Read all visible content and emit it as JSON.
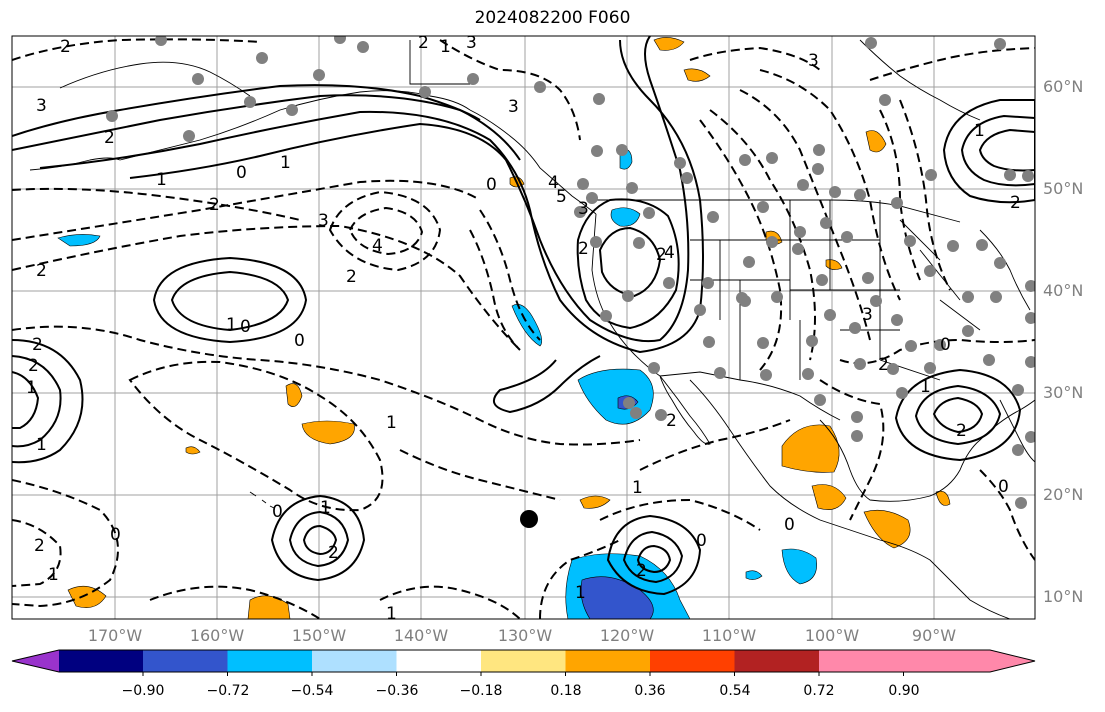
{
  "title": "2024082200 F060",
  "lat_labels": [
    "60°N",
    "50°N",
    "40°N",
    "30°N",
    "20°N",
    "10°N"
  ],
  "lon_labels": [
    "170°W",
    "160°W",
    "150°W",
    "140°W",
    "130°W",
    "120°W",
    "110°W",
    "100°W",
    "90°W"
  ],
  "colorbar": {
    "ticks": [
      "−0.90",
      "−0.72",
      "−0.54",
      "−0.36",
      "−0.18",
      "0.18",
      "0.36",
      "0.54",
      "0.72",
      "0.90"
    ],
    "colors": [
      "#9933cc",
      "#000080",
      "#3355cc",
      "#00bfff",
      "#aee0ff",
      "#ffffff",
      "#ffe680",
      "#ffa500",
      "#ff4000",
      "#b22222",
      "#ff88aa"
    ]
  },
  "contour_labels": [
    {
      "text": "2"
    },
    {
      "text": "3"
    },
    {
      "text": "2"
    },
    {
      "text": "1"
    },
    {
      "text": "0"
    },
    {
      "text": "1"
    },
    {
      "text": "2"
    },
    {
      "text": "3"
    },
    {
      "text": "4"
    },
    {
      "text": "2"
    },
    {
      "text": "1"
    },
    {
      "text": "0"
    },
    {
      "text": "0"
    },
    {
      "text": "2"
    },
    {
      "text": "2"
    },
    {
      "text": "1"
    },
    {
      "text": "1"
    },
    {
      "text": "2"
    },
    {
      "text": "1"
    },
    {
      "text": "0"
    },
    {
      "text": "2"
    },
    {
      "text": "1"
    },
    {
      "text": "0"
    },
    {
      "text": "2"
    },
    {
      "text": "1"
    },
    {
      "text": "1"
    },
    {
      "text": "3"
    },
    {
      "text": "4"
    },
    {
      "text": "5"
    },
    {
      "text": "2"
    },
    {
      "text": "0"
    },
    {
      "text": "1"
    },
    {
      "text": "2"
    },
    {
      "text": "3"
    },
    {
      "text": "2"
    },
    {
      "text": "3"
    },
    {
      "text": "2"
    },
    {
      "text": "0"
    },
    {
      "text": "1"
    },
    {
      "text": "1"
    },
    {
      "text": "2"
    },
    {
      "text": "0"
    },
    {
      "text": "3"
    },
    {
      "text": "4"
    },
    {
      "text": "3"
    },
    {
      "text": "2"
    },
    {
      "text": "0"
    },
    {
      "text": "2"
    },
    {
      "text": "0"
    },
    {
      "text": "1"
    },
    {
      "text": "1"
    },
    {
      "text": "2"
    }
  ]
}
